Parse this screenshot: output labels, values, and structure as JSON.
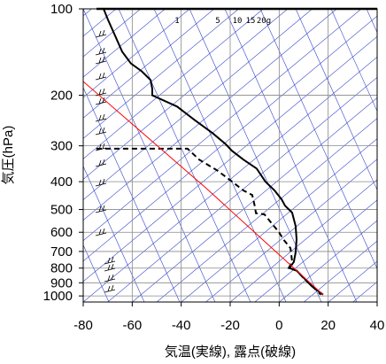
{
  "chart_data": {
    "type": "line",
    "x_label": "気温(実線), 露点(破線)",
    "y_label": "気圧(hPa)",
    "xlim": [
      -80,
      40
    ],
    "xticks": [
      -80,
      -60,
      -40,
      -20,
      0,
      20,
      40
    ],
    "ylim": [
      1050,
      100
    ],
    "yticks": [
      100,
      200,
      300,
      400,
      500,
      600,
      700,
      800,
      900,
      1000
    ],
    "ylog": true,
    "grid": true,
    "mixing_ratio_labels": [
      "1",
      "5",
      "10",
      "15",
      "20g"
    ],
    "series": [
      {
        "color": "#000000",
        "dash": false,
        "pressure": [
          100,
          109,
          124,
          141,
          155,
          165,
          177,
          190,
          200,
          219,
          244,
          271,
          296,
          312,
          335,
          360,
          400,
          429,
          461,
          485,
          513,
          571,
          635,
          706,
          761,
          800,
          816,
          876,
          923,
          990
        ],
        "values": [
          -71.7,
          -69.9,
          -67,
          -64.1,
          -60.5,
          -56.1,
          -52.5,
          -51.8,
          -51.8,
          -41.7,
          -34.5,
          -27.2,
          -21.8,
          -19.3,
          -14.6,
          -9.2,
          -5.6,
          -1.9,
          1,
          2.4,
          5.3,
          6.7,
          7.1,
          6.7,
          6,
          4.2,
          7.1,
          10.7,
          13.2,
          17.9
        ]
      },
      {
        "color": "#000000",
        "dash": true,
        "pressure": [
          307,
          307,
          335,
          365,
          395,
          429,
          445,
          485,
          515,
          520,
          550,
          600,
          635,
          682,
          760,
          800,
          816,
          880,
          940,
          990
        ],
        "values": [
          -74.6,
          -37.4,
          -32.7,
          -25.4,
          -20,
          -14.6,
          -11,
          -10,
          -9.5,
          -6,
          -3.7,
          -0.1,
          1.7,
          4.6,
          5.3,
          3.9,
          7.1,
          10.7,
          14.3,
          17
        ]
      },
      {
        "color": "#ff0000",
        "dash": false,
        "pressure": [
          179,
          420,
          990
        ],
        "values": [
          -80,
          -30,
          17.9
        ]
      }
    ]
  }
}
